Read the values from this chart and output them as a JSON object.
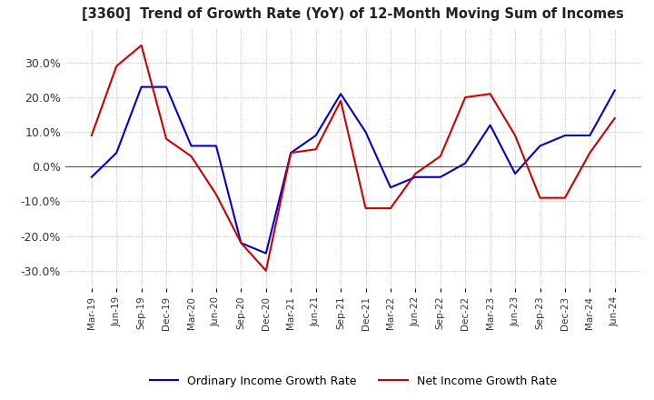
{
  "title": "[3360]  Trend of Growth Rate (YoY) of 12-Month Moving Sum of Incomes",
  "ylim": [
    -35,
    40
  ],
  "yticks": [
    -30,
    -20,
    -10,
    0,
    10,
    20,
    30
  ],
  "background_color": "#ffffff",
  "grid_color": "#aaaaaa",
  "ordinary_color": "#0000cc",
  "net_color": "#cc0000",
  "legend_labels": [
    "Ordinary Income Growth Rate",
    "Net Income Growth Rate"
  ],
  "x_labels": [
    "Mar-19",
    "Jun-19",
    "Sep-19",
    "Dec-19",
    "Mar-20",
    "Jun-20",
    "Sep-20",
    "Dec-20",
    "Mar-21",
    "Jun-21",
    "Sep-21",
    "Dec-21",
    "Mar-22",
    "Jun-22",
    "Sep-22",
    "Dec-22",
    "Mar-23",
    "Jun-23",
    "Sep-23",
    "Dec-23",
    "Mar-24",
    "Jun-24"
  ],
  "ordinary_income": [
    -3,
    4,
    23,
    23,
    6,
    6,
    -22,
    -25,
    4,
    9,
    21,
    10,
    -6,
    -3,
    -3,
    1,
    12,
    -2,
    6,
    9,
    9,
    22
  ],
  "net_income": [
    9,
    29,
    35,
    8,
    3,
    -8,
    -22,
    -30,
    4,
    5,
    19,
    -12,
    -12,
    -2,
    3,
    20,
    21,
    9,
    -9,
    -9,
    4,
    14
  ]
}
